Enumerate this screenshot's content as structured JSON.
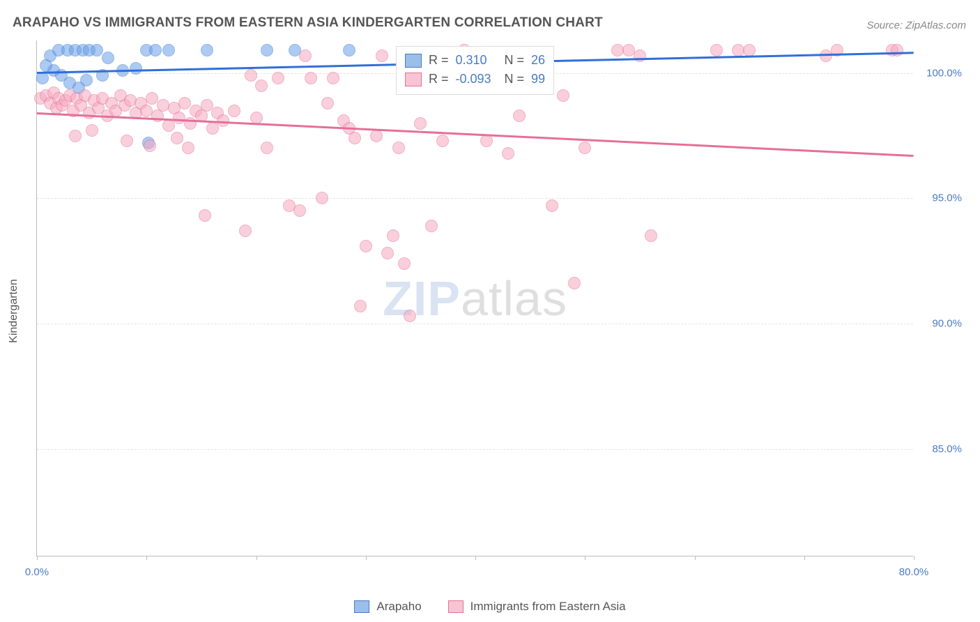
{
  "title": "ARAPAHO VS IMMIGRANTS FROM EASTERN ASIA KINDERGARTEN CORRELATION CHART",
  "source": "Source: ZipAtlas.com",
  "yaxis_label": "Kindergarten",
  "watermark": {
    "part1": "ZIP",
    "part2": "atlas"
  },
  "chart": {
    "type": "scatter",
    "background_color": "#ffffff",
    "grid_color": "#e4e4e4",
    "axis_color": "#bbbbbb",
    "text_color": "#555555",
    "value_color": "#4a7ac7",
    "xlim": [
      0,
      80
    ],
    "ylim": [
      80.7,
      101.3
    ],
    "yticks": [
      85.0,
      90.0,
      95.0,
      100.0
    ],
    "ytick_labels": [
      "85.0%",
      "90.0%",
      "95.0%",
      "100.0%"
    ],
    "xtick_positions": [
      0,
      10,
      20,
      30,
      40,
      50,
      60,
      70,
      80
    ],
    "xtick_labels": {
      "0": "0.0%",
      "80": "80.0%"
    },
    "marker_radius": 9,
    "marker_opacity": 0.55,
    "line_width": 3,
    "series": [
      {
        "name": "Arapaho",
        "color": "#6aa0e8",
        "border_color": "#3f7dd1",
        "R": "0.310",
        "N": "26",
        "trend": {
          "x1": 0,
          "y1": 100.0,
          "x2": 80,
          "y2": 100.8,
          "color": "#2f6fd8"
        },
        "points": [
          [
            0.5,
            99.8
          ],
          [
            1.2,
            100.7
          ],
          [
            2.0,
            100.9
          ],
          [
            2.8,
            100.9
          ],
          [
            3.5,
            100.9
          ],
          [
            4.2,
            100.9
          ],
          [
            4.8,
            100.9
          ],
          [
            5.5,
            100.9
          ],
          [
            1.5,
            100.1
          ],
          [
            2.2,
            99.9
          ],
          [
            0.8,
            100.3
          ],
          [
            3.0,
            99.6
          ],
          [
            4.5,
            99.7
          ],
          [
            6.0,
            99.9
          ],
          [
            7.8,
            100.1
          ],
          [
            10.0,
            100.9
          ],
          [
            10.8,
            100.9
          ],
          [
            12.0,
            100.9
          ],
          [
            15.5,
            100.9
          ],
          [
            21.0,
            100.9
          ],
          [
            23.5,
            100.9
          ],
          [
            28.5,
            100.9
          ],
          [
            10.2,
            97.2
          ],
          [
            3.8,
            99.4
          ],
          [
            6.5,
            100.6
          ],
          [
            9.0,
            100.2
          ]
        ]
      },
      {
        "name": "Immigrants from Eastern Asia",
        "color": "#f6a9c0",
        "border_color": "#e56f98",
        "R": "-0.093",
        "N": "99",
        "trend": {
          "x1": 0,
          "y1": 98.4,
          "x2": 80,
          "y2": 96.7,
          "color": "#e56f98"
        },
        "points": [
          [
            0.3,
            99.0
          ],
          [
            0.8,
            99.1
          ],
          [
            1.2,
            98.8
          ],
          [
            1.5,
            99.2
          ],
          [
            1.8,
            98.6
          ],
          [
            2.0,
            99.0
          ],
          [
            2.3,
            98.7
          ],
          [
            2.6,
            98.9
          ],
          [
            3.0,
            99.1
          ],
          [
            3.3,
            98.5
          ],
          [
            3.6,
            99.0
          ],
          [
            4.0,
            98.7
          ],
          [
            4.4,
            99.1
          ],
          [
            4.8,
            98.4
          ],
          [
            5.2,
            98.9
          ],
          [
            5.6,
            98.6
          ],
          [
            6.0,
            99.0
          ],
          [
            6.4,
            98.3
          ],
          [
            6.8,
            98.8
          ],
          [
            7.2,
            98.5
          ],
          [
            7.6,
            99.1
          ],
          [
            8.0,
            98.7
          ],
          [
            8.5,
            98.9
          ],
          [
            9.0,
            98.4
          ],
          [
            9.5,
            98.8
          ],
          [
            10.0,
            98.5
          ],
          [
            10.5,
            99.0
          ],
          [
            11.0,
            98.3
          ],
          [
            11.5,
            98.7
          ],
          [
            12.0,
            97.9
          ],
          [
            12.5,
            98.6
          ],
          [
            13.0,
            98.2
          ],
          [
            13.5,
            98.8
          ],
          [
            14.0,
            98.0
          ],
          [
            14.5,
            98.5
          ],
          [
            15.0,
            98.3
          ],
          [
            15.5,
            98.7
          ],
          [
            16.0,
            97.8
          ],
          [
            16.5,
            98.4
          ],
          [
            17.0,
            98.1
          ],
          [
            18.0,
            98.5
          ],
          [
            19.0,
            93.7
          ],
          [
            19.5,
            99.9
          ],
          [
            20.0,
            98.2
          ],
          [
            21.0,
            97.0
          ],
          [
            22.0,
            99.8
          ],
          [
            23.0,
            94.7
          ],
          [
            24.0,
            94.5
          ],
          [
            25.0,
            99.8
          ],
          [
            26.0,
            95.0
          ],
          [
            26.5,
            98.8
          ],
          [
            27.0,
            99.8
          ],
          [
            28.0,
            98.1
          ],
          [
            28.5,
            97.8
          ],
          [
            29.0,
            97.4
          ],
          [
            29.5,
            90.7
          ],
          [
            30.0,
            93.1
          ],
          [
            31.0,
            97.5
          ],
          [
            32.0,
            92.8
          ],
          [
            32.5,
            93.5
          ],
          [
            33.0,
            97.0
          ],
          [
            33.5,
            92.4
          ],
          [
            34.0,
            90.3
          ],
          [
            35.0,
            98.0
          ],
          [
            36.0,
            93.9
          ],
          [
            37.0,
            97.3
          ],
          [
            39.0,
            100.9
          ],
          [
            40.0,
            100.7
          ],
          [
            41.0,
            97.3
          ],
          [
            43.0,
            96.8
          ],
          [
            44.0,
            98.3
          ],
          [
            47.0,
            94.7
          ],
          [
            48.0,
            99.1
          ],
          [
            49.0,
            91.6
          ],
          [
            50.0,
            97.0
          ],
          [
            53.0,
            100.9
          ],
          [
            54.0,
            100.9
          ],
          [
            55.0,
            100.7
          ],
          [
            56.0,
            93.5
          ],
          [
            62.0,
            100.9
          ],
          [
            64.0,
            100.9
          ],
          [
            65.0,
            100.9
          ],
          [
            72.0,
            100.7
          ],
          [
            73.0,
            100.9
          ],
          [
            78.0,
            100.9
          ],
          [
            78.5,
            100.9
          ],
          [
            3.5,
            97.5
          ],
          [
            5.0,
            97.7
          ],
          [
            8.2,
            97.3
          ],
          [
            12.8,
            97.4
          ],
          [
            15.3,
            94.3
          ],
          [
            20.5,
            99.5
          ],
          [
            24.5,
            100.7
          ],
          [
            31.5,
            100.7
          ],
          [
            34.5,
            100.7
          ],
          [
            37.5,
            100.7
          ],
          [
            41.5,
            100.7
          ],
          [
            10.3,
            97.1
          ],
          [
            13.8,
            97.0
          ]
        ]
      }
    ]
  },
  "stats_box": {
    "rows": [
      {
        "swatch_fill": "#9abfe8",
        "swatch_border": "#4a7ac7",
        "R": "0.310",
        "N": "26"
      },
      {
        "swatch_fill": "#f7c4d4",
        "swatch_border": "#e56f98",
        "R": "-0.093",
        "N": "99"
      }
    ]
  },
  "legend": [
    {
      "fill": "#9abfe8",
      "border": "#4a7ac7",
      "label": "Arapaho"
    },
    {
      "fill": "#f7c4d4",
      "border": "#e56f98",
      "label": "Immigrants from Eastern Asia"
    }
  ]
}
